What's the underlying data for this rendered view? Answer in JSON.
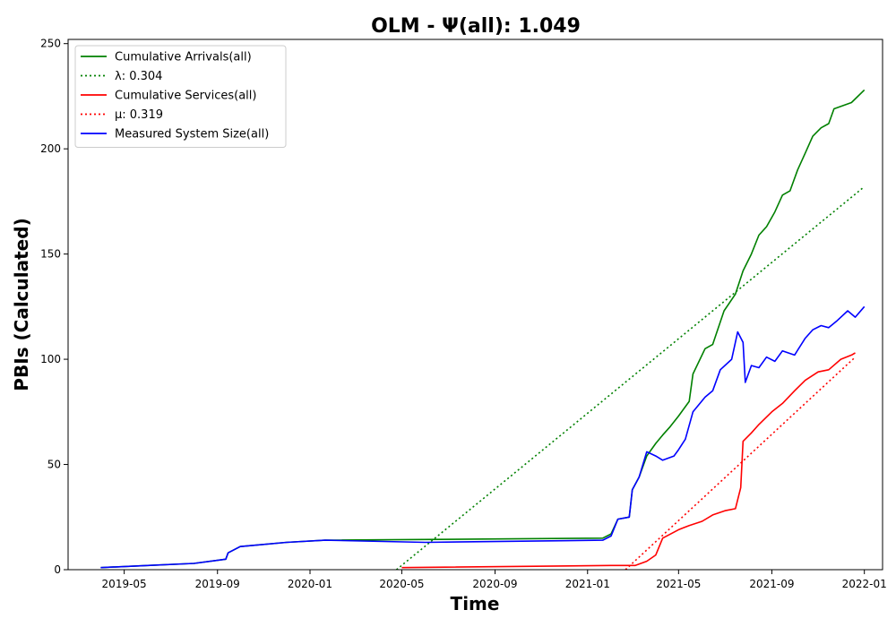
{
  "chart_data": {
    "type": "line",
    "title": "OLM -  Ψ(all): 1.049",
    "xlabel": "Time",
    "ylabel": "PBIs (Calculated)",
    "xlim": [
      "2019-02-16",
      "2022-01-25"
    ],
    "ylim": [
      0,
      252
    ],
    "x_ticks": [
      "2019-05",
      "2019-09",
      "2020-01",
      "2020-05",
      "2020-09",
      "2021-01",
      "2021-05",
      "2021-09",
      "2022-01"
    ],
    "y_ticks": [
      0,
      50,
      100,
      150,
      200,
      250
    ],
    "grid": false,
    "legend_position": "top-left",
    "series": [
      {
        "name": "Cumulative Arrivals(all)",
        "color": "#008000",
        "style": "solid",
        "x": [
          "2019-03-31",
          "2019-06-01",
          "2019-08-01",
          "2019-09-12",
          "2019-09-15",
          "2019-10-01",
          "2019-12-01",
          "2020-01-21",
          "2021-01-21",
          "2021-02-01",
          "2021-02-10",
          "2021-02-25",
          "2021-03-01",
          "2021-03-10",
          "2021-03-20",
          "2021-04-01",
          "2021-04-10",
          "2021-04-20",
          "2021-05-01",
          "2021-05-15",
          "2021-05-20",
          "2021-06-05",
          "2021-06-15",
          "2021-06-30",
          "2021-07-15",
          "2021-07-25",
          "2021-08-05",
          "2021-08-15",
          "2021-08-25",
          "2021-09-05",
          "2021-09-15",
          "2021-09-25",
          "2021-10-05",
          "2021-10-15",
          "2021-10-25",
          "2021-11-05",
          "2021-11-15",
          "2021-11-22",
          "2021-12-15",
          "2022-01-01"
        ],
        "y": [
          1,
          2,
          3,
          5,
          8,
          11,
          13,
          14,
          15,
          17,
          24,
          25,
          38,
          44,
          54,
          60,
          64,
          68,
          73,
          80,
          93,
          105,
          107,
          123,
          131,
          142,
          150,
          159,
          163,
          170,
          178,
          180,
          190,
          198,
          206,
          210,
          212,
          219,
          222,
          228
        ]
      },
      {
        "name": "λ: 0.304",
        "color": "#008000",
        "style": "dotted",
        "x": [
          "2020-04-24",
          "2022-01-01"
        ],
        "y": [
          0,
          182
        ]
      },
      {
        "name": "Cumulative Services(all)",
        "color": "#ff0000",
        "style": "solid",
        "x": [
          "2020-05-01",
          "2021-02-01",
          "2021-03-05",
          "2021-03-20",
          "2021-04-01",
          "2021-04-10",
          "2021-05-01",
          "2021-05-15",
          "2021-06-01",
          "2021-06-15",
          "2021-07-01",
          "2021-07-15",
          "2021-07-22",
          "2021-07-25",
          "2021-08-05",
          "2021-08-15",
          "2021-09-01",
          "2021-09-15",
          "2021-10-01",
          "2021-10-15",
          "2021-11-01",
          "2021-11-15",
          "2021-12-01",
          "2021-12-15",
          "2021-12-20"
        ],
        "y": [
          1,
          2,
          2,
          4,
          7,
          15,
          19,
          21,
          23,
          26,
          28,
          29,
          39,
          61,
          65,
          69,
          75,
          79,
          85,
          90,
          94,
          95,
          100,
          102,
          103
        ]
      },
      {
        "name": "μ: 0.319",
        "color": "#ff0000",
        "style": "dotted",
        "x": [
          "2021-02-20",
          "2021-12-20"
        ],
        "y": [
          0,
          101
        ]
      },
      {
        "name": "Measured System Size(all)",
        "color": "#0000ff",
        "style": "solid",
        "x": [
          "2019-03-31",
          "2019-06-01",
          "2019-08-01",
          "2019-09-12",
          "2019-09-15",
          "2019-10-01",
          "2019-12-01",
          "2020-01-21",
          "2020-06-01",
          "2021-01-21",
          "2021-02-01",
          "2021-02-10",
          "2021-02-25",
          "2021-03-01",
          "2021-03-10",
          "2021-03-20",
          "2021-04-01",
          "2021-04-10",
          "2021-04-25",
          "2021-05-01",
          "2021-05-10",
          "2021-05-20",
          "2021-06-05",
          "2021-06-15",
          "2021-06-25",
          "2021-07-10",
          "2021-07-18",
          "2021-07-25",
          "2021-07-28",
          "2021-08-05",
          "2021-08-15",
          "2021-08-25",
          "2021-09-05",
          "2021-09-15",
          "2021-10-01",
          "2021-10-15",
          "2021-10-25",
          "2021-11-05",
          "2021-11-15",
          "2021-11-25",
          "2021-12-10",
          "2021-12-20",
          "2022-01-01"
        ],
        "y": [
          1,
          2,
          3,
          5,
          8,
          11,
          13,
          14,
          13,
          14,
          16,
          24,
          25,
          38,
          44,
          56,
          54,
          52,
          54,
          57,
          62,
          75,
          82,
          85,
          95,
          100,
          113,
          108,
          89,
          97,
          96,
          101,
          99,
          104,
          102,
          110,
          114,
          116,
          115,
          118,
          123,
          120,
          125
        ]
      }
    ]
  }
}
